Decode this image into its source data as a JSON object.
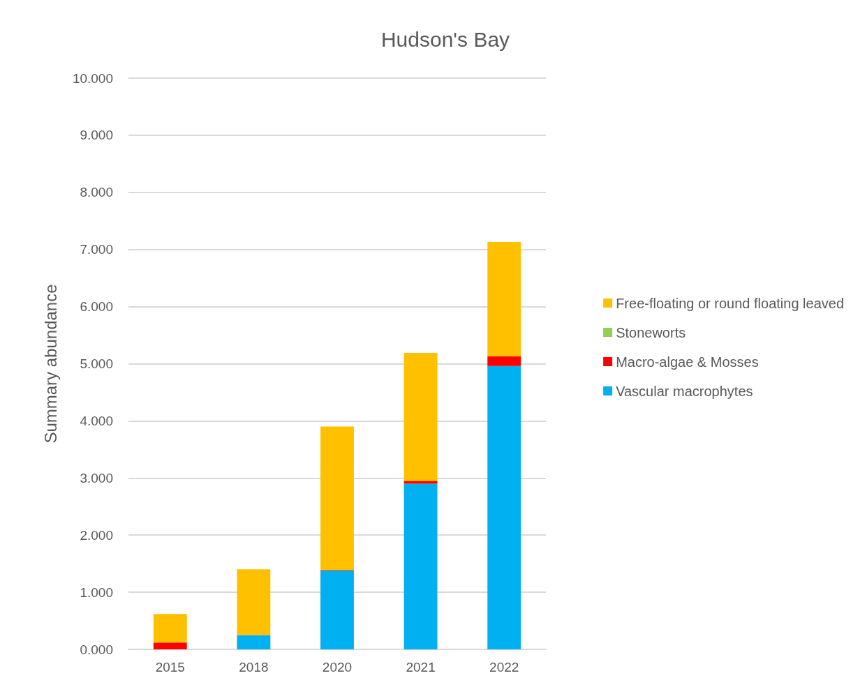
{
  "chart_data": {
    "type": "bar",
    "title": "Hudson's Bay",
    "ylabel": "Summary abundance",
    "stacked": true,
    "grid": "y",
    "legend": "right",
    "categories": [
      "2015",
      "2018",
      "2020",
      "2021",
      "2022"
    ],
    "series": [
      {
        "name": "Vascular macrophytes",
        "color": "#00b0f0",
        "values": [
          0,
          0.25,
          1.38,
          2.9,
          4.96
        ]
      },
      {
        "name": "Macro-algae & Mosses",
        "color": "#ff0000",
        "values": [
          0.12,
          0,
          0.01,
          0.05,
          0.17
        ]
      },
      {
        "name": "Stoneworts",
        "color": "#92d050",
        "values": [
          0,
          0,
          0,
          0,
          0
        ]
      },
      {
        "name": "Free-floating or round floating leaved",
        "color": "#ffc000",
        "values": [
          0.5,
          1.15,
          2.51,
          2.24,
          2.0
        ]
      }
    ],
    "ylim": [
      0,
      10
    ],
    "yticks": [
      {
        "value": 0,
        "label": "0.000"
      },
      {
        "value": 1,
        "label": "1.000"
      },
      {
        "value": 2,
        "label": "2.000"
      },
      {
        "value": 3,
        "label": "3.000"
      },
      {
        "value": 4,
        "label": "4.000"
      },
      {
        "value": 5,
        "label": "5.000"
      },
      {
        "value": 6,
        "label": "6.000"
      },
      {
        "value": 7,
        "label": "7.000"
      },
      {
        "value": 8,
        "label": "8.000"
      },
      {
        "value": 9,
        "label": "9.000"
      },
      {
        "value": 10,
        "label": "10.000"
      }
    ]
  }
}
